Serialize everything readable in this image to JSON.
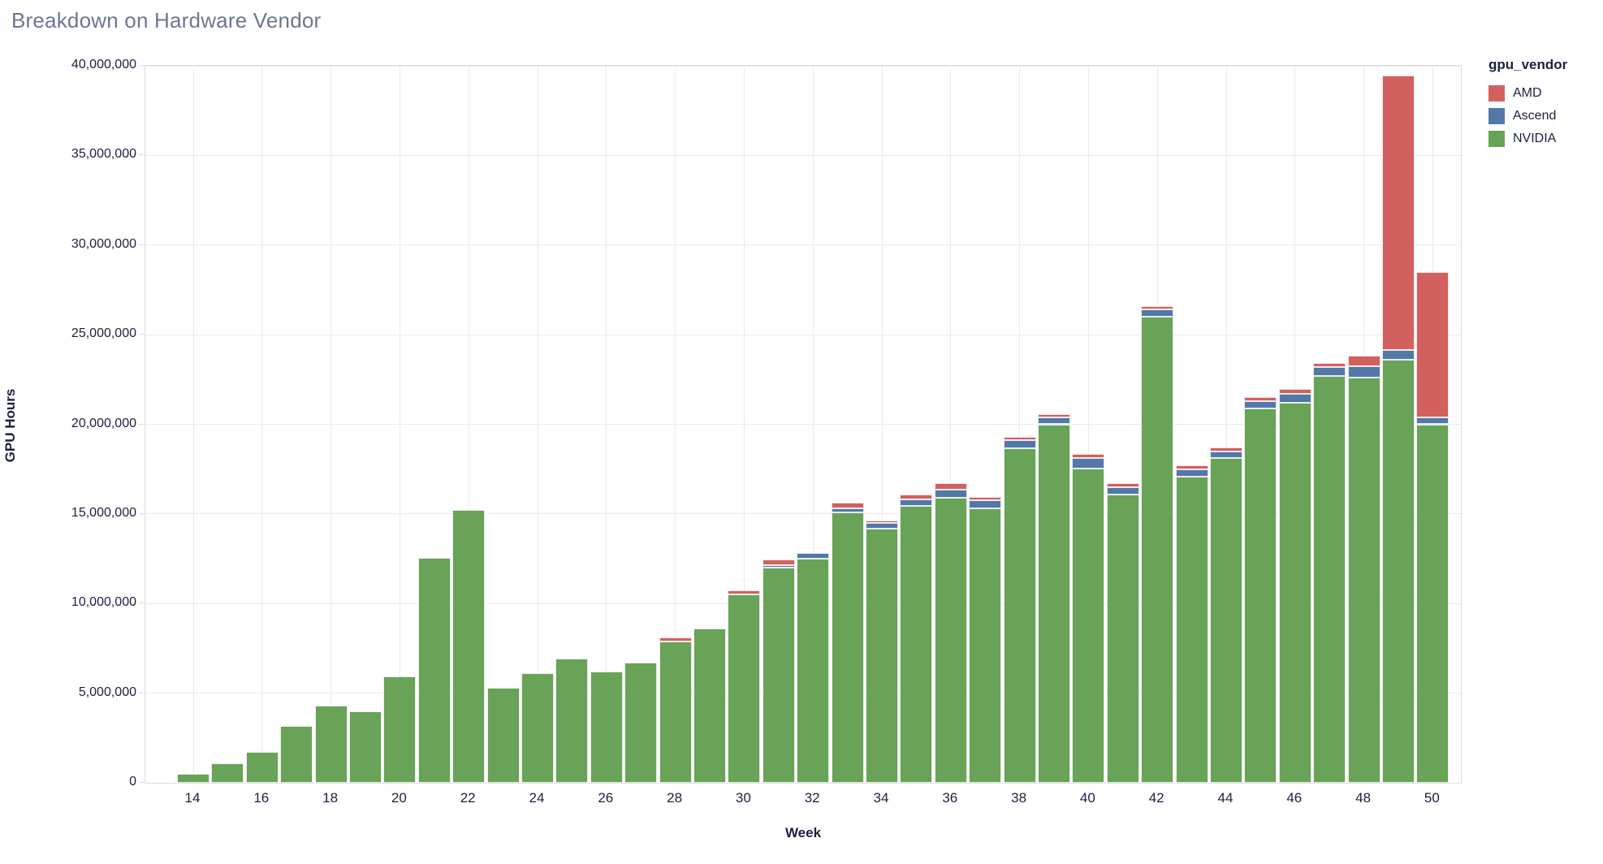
{
  "page_title": "Breakdown on Hardware Vendor",
  "colors": {
    "amd": "#d2605e",
    "ascend": "#5278a8",
    "nvidia": "#68a357",
    "title_text": "#6c7792",
    "axis_text": "#1c2040",
    "grid": "#e9eaf1",
    "view_border": "#dddddd"
  },
  "axes": {
    "x_title": "Week",
    "y_title": "GPU Hours"
  },
  "legend": {
    "title": "gpu_vendor",
    "items": [
      {
        "label": "AMD",
        "color": "#d2605e"
      },
      {
        "label": "Ascend",
        "color": "#5278a8"
      },
      {
        "label": "NVIDIA",
        "color": "#68a357"
      }
    ]
  },
  "chart_data": {
    "type": "bar",
    "stacked": true,
    "title": "Breakdown on Hardware Vendor",
    "xlabel": "Week",
    "ylabel": "GPU Hours",
    "x": [
      14,
      15,
      16,
      17,
      18,
      19,
      20,
      21,
      22,
      23,
      24,
      25,
      26,
      27,
      28,
      29,
      30,
      31,
      32,
      33,
      34,
      35,
      36,
      37,
      38,
      39,
      40,
      41,
      42,
      43,
      44,
      45,
      46,
      47,
      48,
      49,
      50
    ],
    "x_tick_labels": [
      "14",
      "16",
      "18",
      "20",
      "22",
      "24",
      "26",
      "28",
      "30",
      "32",
      "34",
      "36",
      "38",
      "40",
      "42",
      "44",
      "46",
      "48",
      "50"
    ],
    "ylim": [
      0,
      40000000
    ],
    "y_tick_interval": 5000000,
    "y_tick_labels": [
      "0",
      "5,000,000",
      "10,000,000",
      "15,000,000",
      "20,000,000",
      "25,000,000",
      "30,000,000",
      "35,000,000",
      "40,000,000"
    ],
    "grid": true,
    "legend_position": "top-right",
    "stack_order_bottom_to_top": [
      "NVIDIA",
      "Ascend",
      "AMD"
    ],
    "series": [
      {
        "name": "AMD",
        "color": "#d2605e",
        "values": [
          0,
          0,
          0,
          0,
          0,
          0,
          0,
          0,
          0,
          0,
          0,
          0,
          0,
          0,
          200000,
          0,
          250000,
          300000,
          0,
          350000,
          150000,
          300000,
          350000,
          200000,
          200000,
          150000,
          250000,
          200000,
          200000,
          200000,
          200000,
          200000,
          250000,
          200000,
          600000,
          15300000,
          8100000
        ]
      },
      {
        "name": "Ascend",
        "color": "#5278a8",
        "values": [
          0,
          0,
          0,
          0,
          0,
          0,
          0,
          0,
          0,
          0,
          0,
          0,
          0,
          0,
          0,
          0,
          0,
          150000,
          300000,
          200000,
          300000,
          350000,
          450000,
          450000,
          450000,
          400000,
          550000,
          400000,
          400000,
          400000,
          400000,
          400000,
          500000,
          500000,
          650000,
          550000,
          400000
        ]
      },
      {
        "name": "NVIDIA",
        "color": "#68a357",
        "values": [
          500000,
          1100000,
          1700000,
          3150000,
          4300000,
          4000000,
          5950000,
          12550000,
          15200000,
          5300000,
          6100000,
          6950000,
          6200000,
          6700000,
          7900000,
          8600000,
          10500000,
          12000000,
          12500000,
          15100000,
          14200000,
          15450000,
          15900000,
          15300000,
          18650000,
          20000000,
          17550000,
          16100000,
          26000000,
          17100000,
          18100000,
          20900000,
          21200000,
          22700000,
          22600000,
          23600000,
          20000000
        ]
      }
    ]
  }
}
